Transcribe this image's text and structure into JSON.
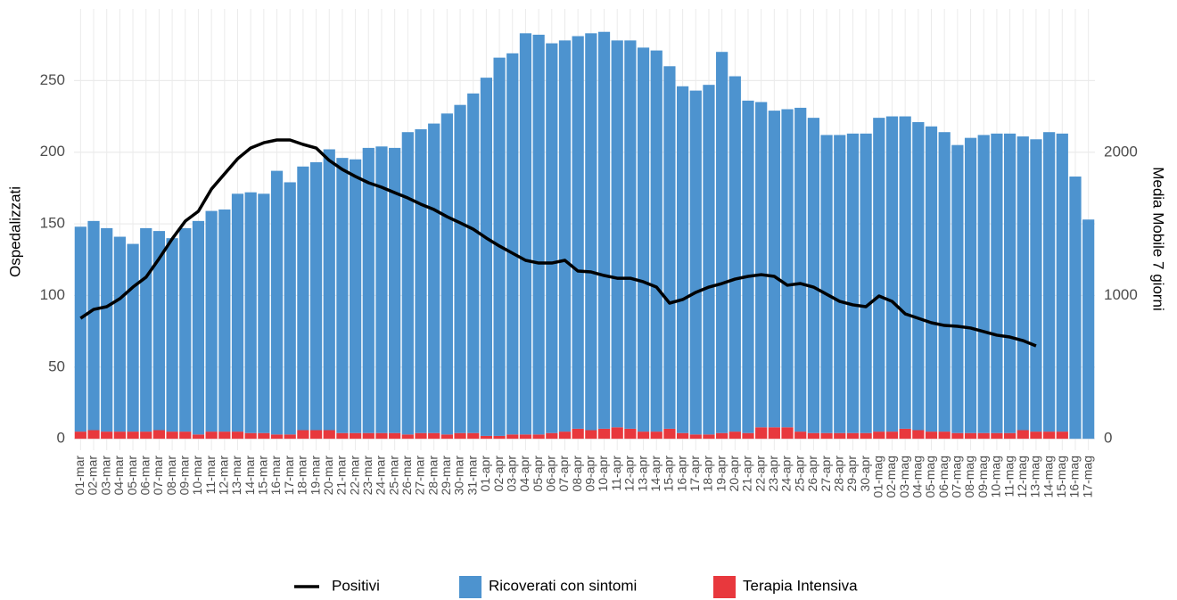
{
  "chart_data": {
    "type": "bar",
    "stacked": true,
    "y_label": "Ospedalizzati",
    "y2_label": "Media Mobile 7 giorni",
    "categories": [
      "01-mar",
      "02-mar",
      "03-mar",
      "04-mar",
      "05-mar",
      "06-mar",
      "07-mar",
      "08-mar",
      "09-mar",
      "10-mar",
      "11-mar",
      "12-mar",
      "13-mar",
      "14-mar",
      "15-mar",
      "16-mar",
      "17-mar",
      "18-mar",
      "19-mar",
      "20-mar",
      "21-mar",
      "22-mar",
      "23-mar",
      "24-mar",
      "25-mar",
      "26-mar",
      "27-mar",
      "28-mar",
      "29-mar",
      "30-mar",
      "31-mar",
      "01-apr",
      "02-apr",
      "03-apr",
      "04-apr",
      "05-apr",
      "06-apr",
      "07-apr",
      "08-apr",
      "09-apr",
      "10-apr",
      "11-apr",
      "12-apr",
      "13-apr",
      "14-apr",
      "15-apr",
      "16-apr",
      "17-apr",
      "18-apr",
      "19-apr",
      "20-apr",
      "21-apr",
      "22-apr",
      "23-apr",
      "24-apr",
      "25-apr",
      "26-apr",
      "27-apr",
      "28-apr",
      "29-apr",
      "30-apr",
      "01-mag",
      "02-mag",
      "03-mag",
      "04-mag",
      "05-mag",
      "06-mag",
      "07-mag",
      "08-mag",
      "09-mag",
      "10-mag",
      "11-mag",
      "12-mag",
      "13-mag",
      "14-mag",
      "15-mag",
      "16-mag",
      "17-mag"
    ],
    "series": [
      {
        "name": "Terapia Intensiva",
        "color": "#e8383d",
        "values": [
          5,
          6,
          5,
          5,
          5,
          5,
          6,
          5,
          5,
          3,
          5,
          5,
          5,
          4,
          4,
          3,
          3,
          6,
          6,
          6,
          4,
          4,
          4,
          4,
          4,
          3,
          4,
          4,
          3,
          4,
          4,
          2,
          2,
          3,
          3,
          3,
          4,
          5,
          7,
          6,
          7,
          8,
          7,
          5,
          5,
          7,
          4,
          3,
          3,
          4,
          5,
          4,
          8,
          8,
          8,
          5,
          4,
          4,
          4,
          4,
          4,
          5,
          5,
          7,
          6,
          5,
          5,
          4,
          4,
          4,
          4,
          4,
          6,
          5,
          5,
          5,
          0,
          0
        ]
      },
      {
        "name": "Ricoverati con sintomi",
        "color": "#4d93cf",
        "values": [
          143,
          146,
          142,
          136,
          131,
          142,
          139,
          135,
          142,
          149,
          154,
          155,
          166,
          168,
          167,
          184,
          176,
          184,
          187,
          196,
          192,
          191,
          199,
          200,
          199,
          211,
          212,
          216,
          224,
          229,
          237,
          250,
          264,
          266,
          280,
          279,
          272,
          273,
          274,
          277,
          277,
          270,
          271,
          268,
          266,
          253,
          242,
          240,
          244,
          266,
          248,
          232,
          227,
          221,
          222,
          226,
          220,
          208,
          208,
          209,
          209,
          219,
          220,
          218,
          215,
          213,
          209,
          201,
          206,
          208,
          209,
          209,
          205,
          204,
          209,
          208,
          183,
          153
        ]
      },
      {
        "name": "Positivi",
        "type": "line",
        "axis": "y2",
        "color": "#000000",
        "values": [
          841,
          903,
          922,
          978,
          1059,
          1128,
          1258,
          1396,
          1520,
          1589,
          1744,
          1850,
          1956,
          2031,
          2068,
          2087,
          2087,
          2056,
          2031,
          1944,
          1881,
          1832,
          1788,
          1757,
          1719,
          1682,
          1638,
          1601,
          1551,
          1508,
          1464,
          1402,
          1346,
          1296,
          1246,
          1227,
          1227,
          1246,
          1171,
          1165,
          1140,
          1121,
          1121,
          1096,
          1059,
          947,
          972,
          1022,
          1059,
          1084,
          1115,
          1134,
          1146,
          1134,
          1072,
          1084,
          1059,
          1009,
          959,
          935,
          922,
          997,
          959,
          872,
          841,
          810,
          791,
          785,
          773,
          748,
          723,
          710,
          685,
          648,
          null,
          null,
          null,
          null
        ]
      }
    ],
    "ylim": [
      -8,
      300
    ],
    "yticks": [
      0,
      50,
      100,
      150,
      200,
      250
    ],
    "y2lim": [
      -81,
      3003
    ],
    "y2ticks": [
      0,
      1000,
      2000
    ],
    "grid": true,
    "legend": "bottom"
  }
}
